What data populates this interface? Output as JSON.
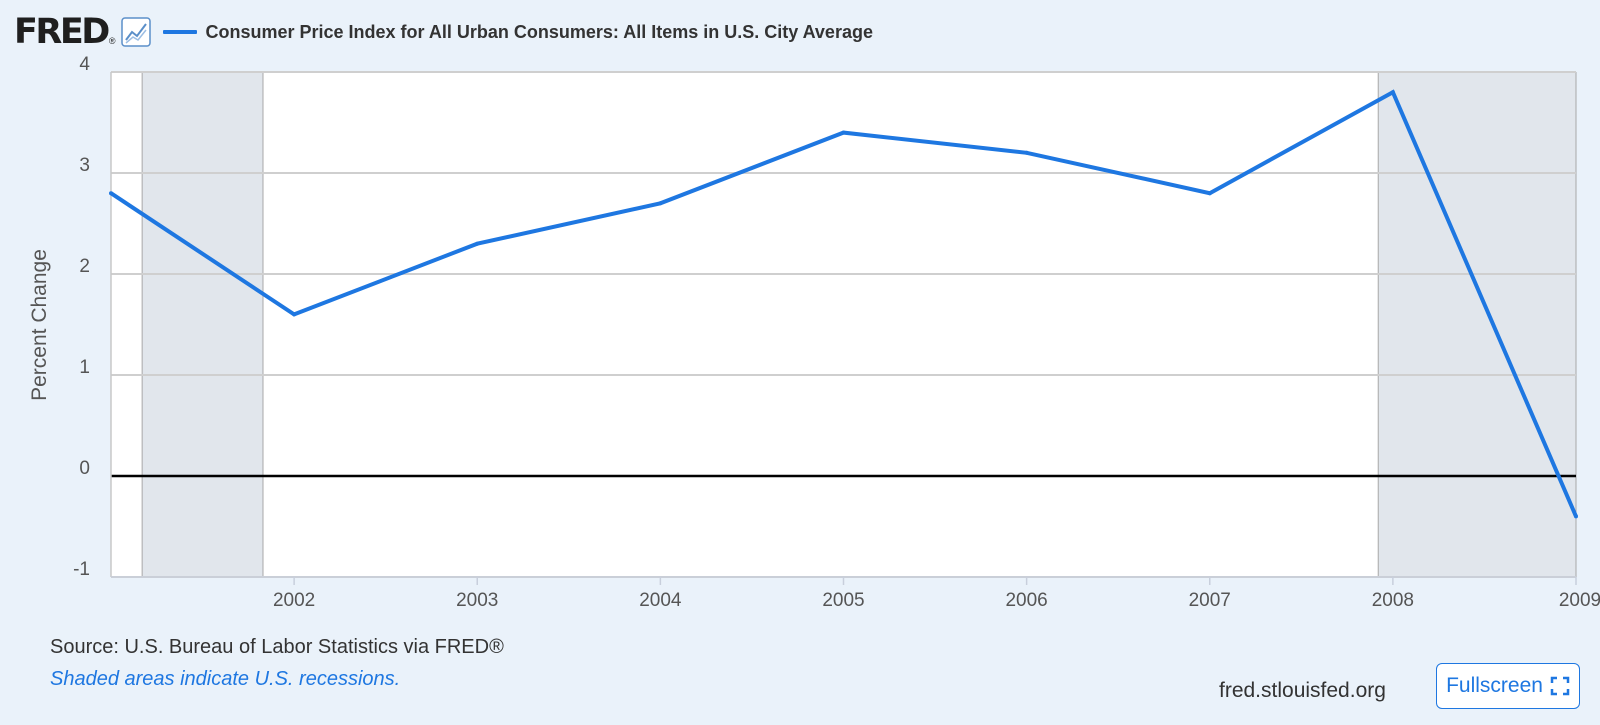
{
  "header": {
    "logo_text": "FRED",
    "logo_mark": "®",
    "series_title": "Consumer Price Index for All Urban Consumers: All Items in U.S. City Average",
    "series_color": "#1e77e1"
  },
  "footer": {
    "source": "Source: U.S. Bureau of Labor Statistics via FRED®",
    "note": "Shaded areas indicate U.S. recessions.",
    "site": "fred.stlouisfed.org",
    "fullscreen_label": "Fullscreen"
  },
  "chart_data": {
    "type": "line",
    "title": "Consumer Price Index for All Urban Consumers: All Items in U.S. City Average",
    "xlabel": "",
    "ylabel": "Percent Change",
    "ylim": [
      -1,
      4
    ],
    "xlim": [
      2001,
      2009
    ],
    "y_ticks": [
      "4",
      "3",
      "2",
      "1",
      "0",
      "-1"
    ],
    "x_ticks": [
      "2002",
      "2003",
      "2004",
      "2005",
      "2006",
      "2007",
      "2008",
      "2009"
    ],
    "grid": true,
    "series": [
      {
        "name": "Consumer Price Index for All Urban Consumers: All Items in U.S. City Average",
        "color": "#1e77e1",
        "x": [
          2001,
          2002,
          2003,
          2004,
          2005,
          2006,
          2007,
          2008,
          2009
        ],
        "values": [
          2.8,
          1.6,
          2.3,
          2.7,
          3.4,
          3.2,
          2.8,
          3.8,
          -0.4
        ]
      }
    ],
    "recessions": [
      {
        "start": 2001.17,
        "end": 2001.83
      },
      {
        "start": 2007.92,
        "end": 2009.0
      }
    ]
  }
}
